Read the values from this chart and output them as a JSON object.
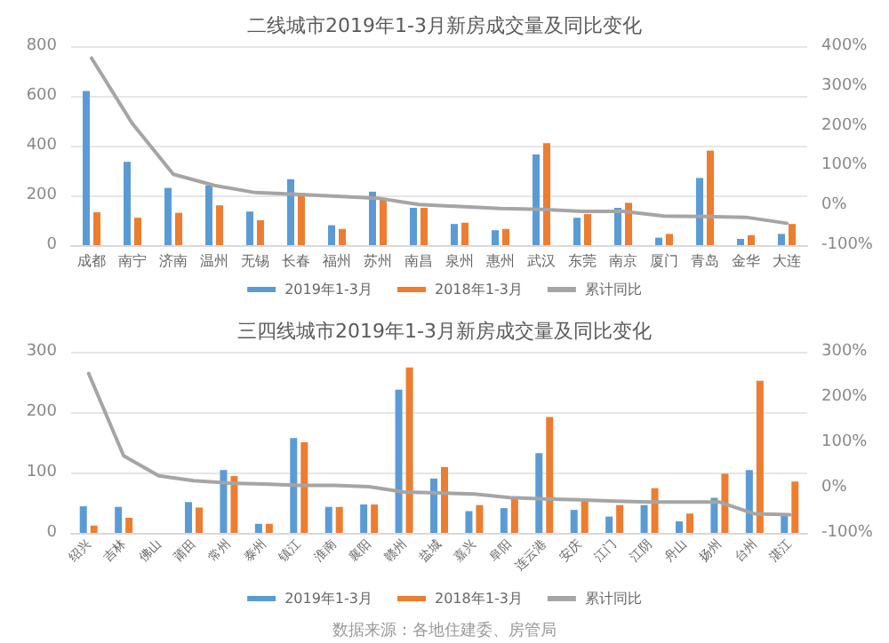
{
  "chart_data": [
    {
      "type": "bar",
      "title": "二线城市2019年1-3月新房成交量及同比变化",
      "categories": [
        "成都",
        "南宁",
        "济南",
        "温州",
        "无锡",
        "长春",
        "福州",
        "苏州",
        "南昌",
        "泉州",
        "惠州",
        "武汉",
        "东莞",
        "南京",
        "厦门",
        "青岛",
        "金华",
        "大连"
      ],
      "series": [
        {
          "name": "2019年1-3月",
          "color": "#5b9bd5",
          "values": [
            620,
            335,
            230,
            240,
            135,
            265,
            80,
            215,
            150,
            85,
            60,
            365,
            110,
            150,
            30,
            270,
            25,
            45
          ]
        },
        {
          "name": "2018年1-3月",
          "color": "#ed7d31",
          "values": [
            132,
            110,
            130,
            160,
            100,
            210,
            65,
            185,
            150,
            90,
            65,
            410,
            125,
            170,
            45,
            380,
            40,
            85
          ]
        },
        {
          "name": "累计同比",
          "type": "line",
          "axis": "y2",
          "color": "#a5a5a5",
          "values": [
            370,
            205,
            78,
            50,
            32,
            28,
            23,
            18,
            2,
            -3,
            -8,
            -10,
            -15,
            -15,
            -27,
            -28,
            -30,
            -45
          ]
        }
      ],
      "ylim": [
        0,
        800
      ],
      "yticks": [
        0,
        200,
        400,
        600,
        800
      ],
      "y2lim": [
        -100,
        400
      ],
      "y2ticks": [
        {
          "value": -100,
          "label": "-100%"
        },
        {
          "value": 0,
          "label": "0%"
        },
        {
          "value": 100,
          "label": "100%"
        },
        {
          "value": 200,
          "label": "200%"
        },
        {
          "value": 300,
          "label": "300%"
        },
        {
          "value": 400,
          "label": "400%"
        }
      ],
      "grid": "y",
      "legend": "bottom",
      "marker": "none"
    },
    {
      "type": "bar",
      "title": "三四线城市2019年1-3月新房成交量及同比变化",
      "categories": [
        "绍兴",
        "吉林",
        "佛山",
        "莆田",
        "常州",
        "泰州",
        "镇江",
        "淮南",
        "襄阳",
        "赣州",
        "盐城",
        "嘉兴",
        "阜阳",
        "连云港",
        "安庆",
        "江门",
        "江阴",
        "舟山",
        "扬州",
        "台州",
        "湛江"
      ],
      "series": [
        {
          "name": "2019年1-3月",
          "color": "#5b9bd5",
          "values": [
            44,
            43,
            null,
            51,
            104,
            15,
            157,
            43,
            47,
            237,
            90,
            36,
            41,
            132,
            38,
            27,
            46,
            19,
            58,
            104,
            29
          ]
        },
        {
          "name": "2018年1-3月",
          "color": "#ed7d31",
          "values": [
            12,
            25,
            null,
            42,
            94,
            15,
            150,
            43,
            47,
            274,
            109,
            46,
            58,
            192,
            56,
            46,
            74,
            32,
            98,
            252,
            85
          ]
        },
        {
          "name": "累计同比",
          "type": "line",
          "axis": "y2",
          "color": "#a5a5a5",
          "values": [
            252,
            70,
            26,
            15,
            10,
            8,
            5,
            5,
            2,
            -10,
            -12,
            -14,
            -22,
            -25,
            -27,
            -30,
            -32,
            -32,
            -32,
            -58,
            -60
          ]
        }
      ],
      "ylim": [
        0,
        300
      ],
      "yticks": [
        0,
        100,
        200,
        300
      ],
      "y2lim": [
        -100,
        300
      ],
      "y2ticks": [
        {
          "value": -100,
          "label": "-100%"
        },
        {
          "value": 0,
          "label": "0%"
        },
        {
          "value": 100,
          "label": "100%"
        },
        {
          "value": 200,
          "label": "200%"
        },
        {
          "value": 300,
          "label": "300%"
        }
      ],
      "grid": "y",
      "legend": "bottom",
      "marker": "none",
      "annotations": [
        "数据来源：各地住建委、房管局"
      ]
    }
  ]
}
